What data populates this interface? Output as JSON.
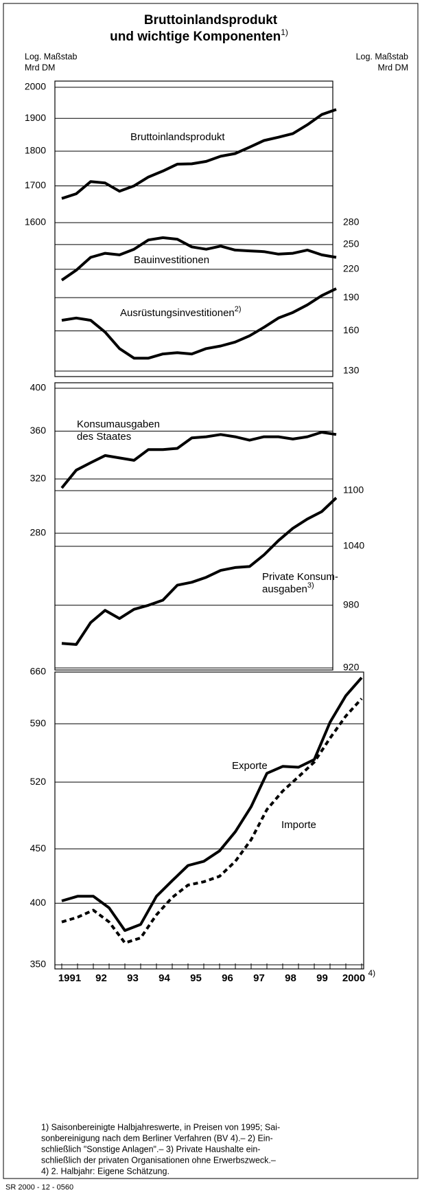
{
  "title_lines": [
    "Bruttoinlandsprodukt",
    "und wichtige Komponenten"
  ],
  "title_note": "1)",
  "left_axis_label": [
    "Log. Maßstab",
    "Mrd DM"
  ],
  "right_axis_label": [
    "Log. Maßstab",
    "Mrd DM"
  ],
  "chart_data": [
    {
      "type": "line",
      "log": true,
      "grid": true,
      "ylim": [
        1600,
        2000
      ],
      "yticks": [
        1600,
        1700,
        1800,
        1900,
        2000
      ],
      "y2lim": [
        130,
        280
      ],
      "y2ticks": [
        130,
        160,
        190,
        220,
        250,
        280
      ],
      "series": [
        {
          "name": "Bruttoinlandsprodukt",
          "color": "#000000",
          "values": [
            1665,
            1678,
            1712,
            1708,
            1685,
            1700,
            1725,
            1742,
            1762,
            1763,
            1770,
            1785,
            1793,
            1812,
            1832,
            1842,
            1853,
            1880,
            1912,
            1928
          ]
        },
        {
          "name": "Bauinvestitionen",
          "color": "#000000",
          "axis": "y2",
          "values": [
            208,
            219,
            234,
            239,
            237,
            244,
            256,
            259,
            257,
            247,
            244,
            248,
            243,
            242,
            241,
            238,
            239,
            243,
            237,
            234
          ]
        },
        {
          "name": "Ausrüstungsinvestitionen",
          "note": "2)",
          "color": "#000000",
          "axis": "y2",
          "values": [
            169,
            171,
            169,
            159,
            146,
            139,
            139,
            142,
            143,
            142,
            146,
            148,
            151,
            156,
            163,
            171,
            176,
            183,
            192,
            199
          ]
        }
      ]
    },
    {
      "type": "line",
      "log": true,
      "grid": true,
      "ylim": [
        280,
        400
      ],
      "yticks": [
        280,
        320,
        360,
        400
      ],
      "y2lim": [
        920,
        1100
      ],
      "y2ticks": [
        920,
        980,
        1040,
        1100
      ],
      "series": [
        {
          "name_lines": [
            "Konsumausgaben",
            "des Staates"
          ],
          "color": "#000000",
          "values": [
            313,
            327,
            333,
            339,
            337,
            335,
            344,
            344,
            345,
            354,
            355,
            357,
            355,
            352,
            355,
            355,
            353,
            355,
            359,
            357
          ]
        },
        {
          "name_lines": [
            "Private Konsum-",
            "ausgaben"
          ],
          "note": "3)",
          "color": "#000000",
          "axis": "y2",
          "values": [
            943,
            942,
            963,
            975,
            967,
            976,
            980,
            985,
            1000,
            1003,
            1008,
            1015,
            1018,
            1019,
            1031,
            1046,
            1059,
            1069,
            1077,
            1092
          ]
        }
      ]
    },
    {
      "type": "line",
      "log": true,
      "grid": true,
      "categories": [
        "1991",
        null,
        "92",
        null,
        "93",
        null,
        "94",
        null,
        "95",
        null,
        "96",
        null,
        "97",
        null,
        "98",
        null,
        "99",
        null,
        "2000",
        null
      ],
      "category_note": "4)",
      "ylim": [
        350,
        660
      ],
      "yticks": [
        350,
        400,
        450,
        520,
        590,
        660
      ],
      "series": [
        {
          "name": "Exporte",
          "color": "#000000",
          "values": [
            402,
            406,
            406,
            396,
            377,
            382,
            406,
            420,
            434,
            438,
            448,
            467,
            493,
            530,
            538,
            537,
            546,
            592,
            627,
            652
          ]
        },
        {
          "name": "Importe",
          "color": "#000000",
          "dashed": true,
          "values": [
            384,
            388,
            394,
            384,
            367,
            371,
            390,
            405,
            416,
            419,
            424,
            438,
            459,
            490,
            510,
            526,
            543,
            572,
            600,
            623
          ]
        }
      ]
    }
  ],
  "footnotes": [
    "1) Saisonbereinigte Halbjahreswerte, in Preisen von 1995; Sai-",
    "sonbereinigung nach dem Berliner Verfahren (BV 4).– 2) Ein-",
    "schließlich \"Sonstige Anlagen\".– 3) Private Haushalte ein-",
    "schließlich der privaten Organisationen ohne Erwerbszweck.–",
    "4) 2. Halbjahr: Eigene Schätzung."
  ],
  "source": "SR 2000 - 12 - 0560"
}
